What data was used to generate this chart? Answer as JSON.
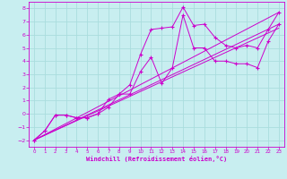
{
  "xlabel": "Windchill (Refroidissement éolien,°C)",
  "ylabel": "",
  "background_color": "#c8eef0",
  "grid_color": "#aadddd",
  "line_color": "#cc00cc",
  "xlim": [
    -0.5,
    23.5
  ],
  "ylim": [
    -2.5,
    8.5
  ],
  "xticks": [
    0,
    1,
    2,
    3,
    4,
    5,
    6,
    7,
    8,
    9,
    10,
    11,
    12,
    13,
    14,
    15,
    16,
    17,
    18,
    19,
    20,
    21,
    22,
    23
  ],
  "yticks": [
    -2,
    -1,
    0,
    1,
    2,
    3,
    4,
    5,
    6,
    7,
    8
  ],
  "series1_x": [
    0,
    1,
    2,
    3,
    4,
    5,
    6,
    7,
    8,
    9,
    10,
    11,
    12,
    13,
    14,
    15,
    16,
    17,
    18,
    19,
    20,
    21,
    22,
    23
  ],
  "series1_y": [
    -2.0,
    -1.3,
    -0.1,
    -0.1,
    -0.3,
    -0.3,
    0.0,
    1.1,
    1.5,
    2.2,
    4.5,
    6.4,
    6.5,
    6.6,
    8.1,
    6.7,
    6.8,
    5.8,
    5.2,
    5.0,
    5.2,
    5.0,
    6.4,
    7.7
  ],
  "series2_x": [
    0,
    1,
    2,
    3,
    4,
    5,
    6,
    7,
    8,
    9,
    10,
    11,
    12,
    13,
    14,
    15,
    16,
    17,
    18,
    19,
    20,
    21,
    22,
    23
  ],
  "series2_y": [
    -2.0,
    -1.3,
    -0.1,
    -0.1,
    -0.3,
    -0.3,
    0.0,
    0.5,
    1.5,
    1.5,
    3.2,
    4.3,
    2.3,
    3.5,
    7.5,
    5.0,
    5.0,
    4.0,
    4.0,
    3.8,
    3.8,
    3.5,
    5.5,
    6.8
  ],
  "line1_x": [
    0,
    23
  ],
  "line1_y": [
    -2.0,
    7.7
  ],
  "line2_x": [
    0,
    23
  ],
  "line2_y": [
    -2.0,
    6.8
  ],
  "line3_x": [
    0,
    23
  ],
  "line3_y": [
    -2.0,
    6.5
  ]
}
